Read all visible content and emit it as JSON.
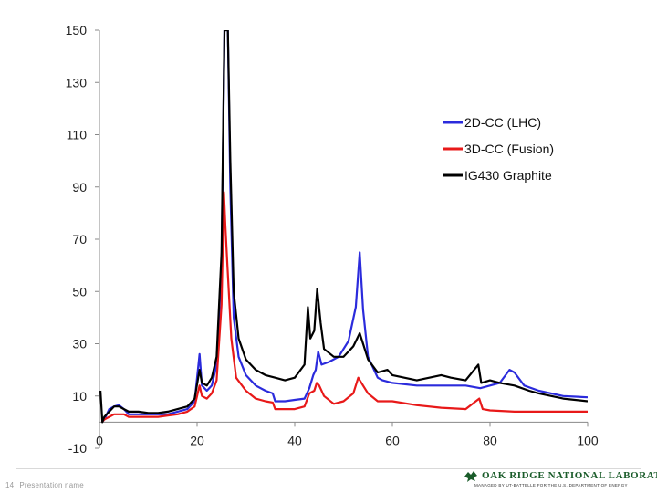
{
  "footer": {
    "page_number": "14",
    "presentation_name": "Presentation name"
  },
  "logo": {
    "name": "OAK RIDGE NATIONAL LABORATORY",
    "subtitle": "MANAGED BY UT-BATTELLE FOR THE U.S. DEPARTMENT OF ENERGY",
    "color": "#1a5c2a"
  },
  "chart_data": {
    "type": "line",
    "title": "",
    "xlabel": "",
    "ylabel": "",
    "xlim": [
      0,
      100
    ],
    "ylim": [
      -10,
      150
    ],
    "x_ticks": [
      "0",
      "20",
      "40",
      "60",
      "80",
      "100"
    ],
    "y_ticks": [
      "150",
      "130",
      "110",
      "90",
      "70",
      "50",
      "30",
      "10",
      "-10"
    ],
    "grid": false,
    "legend_position": "right",
    "series": [
      {
        "name": "2D-CC (LHC)",
        "color": "#2b2bdc",
        "points": [
          [
            0.5,
            0
          ],
          [
            1,
            1
          ],
          [
            2,
            5
          ],
          [
            3,
            6
          ],
          [
            4,
            6.5
          ],
          [
            5,
            5
          ],
          [
            6,
            3
          ],
          [
            8,
            3
          ],
          [
            10,
            3
          ],
          [
            12,
            3
          ],
          [
            14,
            3
          ],
          [
            16,
            4
          ],
          [
            18,
            5
          ],
          [
            19.5,
            8
          ],
          [
            20.5,
            26
          ],
          [
            21,
            14
          ],
          [
            22,
            12
          ],
          [
            23,
            14
          ],
          [
            24,
            22
          ],
          [
            25,
            60
          ],
          [
            25.6,
            150
          ],
          [
            26.3,
            150
          ],
          [
            26.8,
            90
          ],
          [
            27.5,
            40
          ],
          [
            28.5,
            25
          ],
          [
            30,
            18
          ],
          [
            32,
            14
          ],
          [
            34,
            12
          ],
          [
            35.5,
            11
          ],
          [
            36,
            8
          ],
          [
            38,
            8
          ],
          [
            40,
            8.5
          ],
          [
            42,
            9
          ],
          [
            43,
            13
          ],
          [
            43.8,
            18
          ],
          [
            44.3,
            20
          ],
          [
            44.8,
            27
          ],
          [
            45.5,
            22
          ],
          [
            47,
            23
          ],
          [
            49,
            25
          ],
          [
            51,
            31
          ],
          [
            52.5,
            44
          ],
          [
            53.3,
            65
          ],
          [
            54,
            43
          ],
          [
            55,
            25
          ],
          [
            57,
            17
          ],
          [
            58,
            16
          ],
          [
            60,
            15
          ],
          [
            65,
            14
          ],
          [
            70,
            14
          ],
          [
            75,
            14
          ],
          [
            78,
            13
          ],
          [
            82,
            15
          ],
          [
            84,
            20
          ],
          [
            85,
            19
          ],
          [
            87,
            14
          ],
          [
            90,
            12
          ],
          [
            95,
            10
          ],
          [
            100,
            9.5
          ]
        ]
      },
      {
        "name": "3D-CC (Fusion)",
        "color": "#e81919",
        "points": [
          [
            0.5,
            0
          ],
          [
            1,
            1
          ],
          [
            2,
            2
          ],
          [
            3,
            3
          ],
          [
            4,
            3
          ],
          [
            5,
            3
          ],
          [
            6,
            2
          ],
          [
            8,
            2
          ],
          [
            10,
            2
          ],
          [
            12,
            2
          ],
          [
            14,
            2.5
          ],
          [
            16,
            3
          ],
          [
            18,
            4
          ],
          [
            19.5,
            6
          ],
          [
            20.5,
            14
          ],
          [
            21,
            10
          ],
          [
            22,
            9
          ],
          [
            23,
            11
          ],
          [
            24,
            16
          ],
          [
            25,
            45
          ],
          [
            25.5,
            88
          ],
          [
            25.8,
            75
          ],
          [
            26.2,
            60
          ],
          [
            27,
            32
          ],
          [
            28,
            17
          ],
          [
            30,
            12
          ],
          [
            32,
            9
          ],
          [
            34,
            8
          ],
          [
            35.5,
            7.5
          ],
          [
            36,
            5
          ],
          [
            38,
            5
          ],
          [
            40,
            5
          ],
          [
            42,
            6
          ],
          [
            43,
            11
          ],
          [
            44,
            12
          ],
          [
            44.5,
            15
          ],
          [
            45,
            14
          ],
          [
            46,
            10
          ],
          [
            48,
            7
          ],
          [
            50,
            8
          ],
          [
            52,
            11
          ],
          [
            53,
            17
          ],
          [
            54,
            14
          ],
          [
            55,
            11
          ],
          [
            57,
            8
          ],
          [
            60,
            8
          ],
          [
            65,
            6.5
          ],
          [
            70,
            5.5
          ],
          [
            75,
            5
          ],
          [
            77.8,
            9
          ],
          [
            78.5,
            5
          ],
          [
            80,
            4.5
          ],
          [
            85,
            4
          ],
          [
            90,
            4
          ],
          [
            95,
            4
          ],
          [
            100,
            4
          ]
        ]
      },
      {
        "name": "IG430 Graphite",
        "color": "#000000",
        "points": [
          [
            0.2,
            12
          ],
          [
            0.6,
            0
          ],
          [
            1,
            2
          ],
          [
            2,
            4
          ],
          [
            3,
            6
          ],
          [
            4,
            6
          ],
          [
            5,
            5
          ],
          [
            6,
            4
          ],
          [
            8,
            4
          ],
          [
            10,
            3.5
          ],
          [
            12,
            3.5
          ],
          [
            14,
            4
          ],
          [
            16,
            5
          ],
          [
            18,
            6
          ],
          [
            19.5,
            9
          ],
          [
            20.5,
            20
          ],
          [
            21,
            15
          ],
          [
            22,
            14
          ],
          [
            23,
            17
          ],
          [
            24,
            25
          ],
          [
            25,
            65
          ],
          [
            25.6,
            150
          ],
          [
            26.3,
            150
          ],
          [
            26.8,
            100
          ],
          [
            27.5,
            50
          ],
          [
            28.5,
            32
          ],
          [
            30,
            24
          ],
          [
            32,
            20
          ],
          [
            34,
            18
          ],
          [
            36,
            17
          ],
          [
            38,
            16
          ],
          [
            40,
            17
          ],
          [
            42,
            22
          ],
          [
            42.7,
            44
          ],
          [
            43.2,
            32
          ],
          [
            44,
            35
          ],
          [
            44.6,
            51
          ],
          [
            45.3,
            38
          ],
          [
            46,
            28
          ],
          [
            48,
            25
          ],
          [
            50,
            25
          ],
          [
            52,
            29
          ],
          [
            53.3,
            34
          ],
          [
            54,
            30
          ],
          [
            55,
            24
          ],
          [
            57,
            19
          ],
          [
            59,
            20
          ],
          [
            60,
            18
          ],
          [
            65,
            16
          ],
          [
            70,
            18
          ],
          [
            72,
            17
          ],
          [
            75,
            16
          ],
          [
            77.6,
            22
          ],
          [
            78.2,
            15
          ],
          [
            80,
            16
          ],
          [
            82,
            15
          ],
          [
            85,
            14
          ],
          [
            88,
            12
          ],
          [
            90,
            11
          ],
          [
            95,
            9
          ],
          [
            100,
            8
          ]
        ]
      }
    ]
  }
}
